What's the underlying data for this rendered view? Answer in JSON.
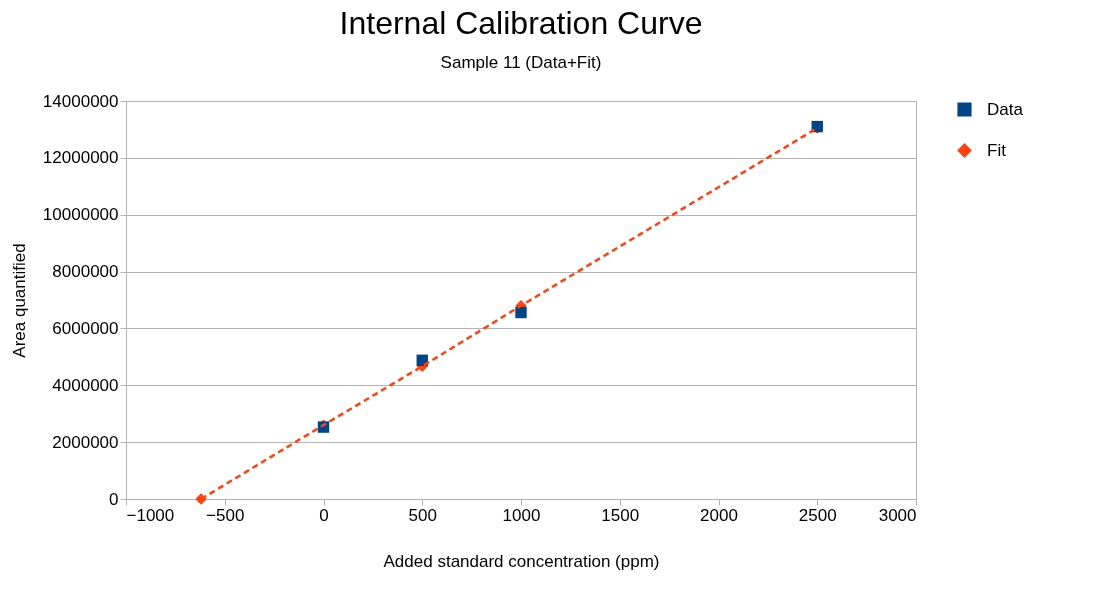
{
  "chart_data": {
    "type": "scatter",
    "title": "Internal Calibration Curve",
    "subtitle": "Sample 11 (Data+Fit)",
    "xlabel": "Added standard concentration (ppm)",
    "ylabel": "Area quantified",
    "series": [
      {
        "name": "Data",
        "type": "scatter",
        "color": "#004586",
        "marker": "square",
        "x": [
          0,
          500,
          1000,
          2500
        ],
        "values": [
          2530000,
          4880000,
          6560000,
          13100000
        ]
      },
      {
        "name": "Fit",
        "type": "line",
        "color": "#ff420e",
        "marker": "diamond",
        "line_style": "dashed",
        "x": [
          -620,
          0,
          500,
          1000,
          2500
        ],
        "values": [
          0,
          2600000,
          4670000,
          6800000,
          13050000
        ]
      }
    ],
    "xlim": [
      -1000,
      3000
    ],
    "xticks": [
      -1000,
      -500,
      0,
      500,
      1000,
      1500,
      2000,
      2500,
      3000
    ],
    "ylim": [
      0,
      14000000
    ],
    "yticks": [
      0,
      2000000,
      4000000,
      6000000,
      8000000,
      10000000,
      12000000,
      14000000
    ],
    "grid": "y",
    "legend": "right"
  }
}
